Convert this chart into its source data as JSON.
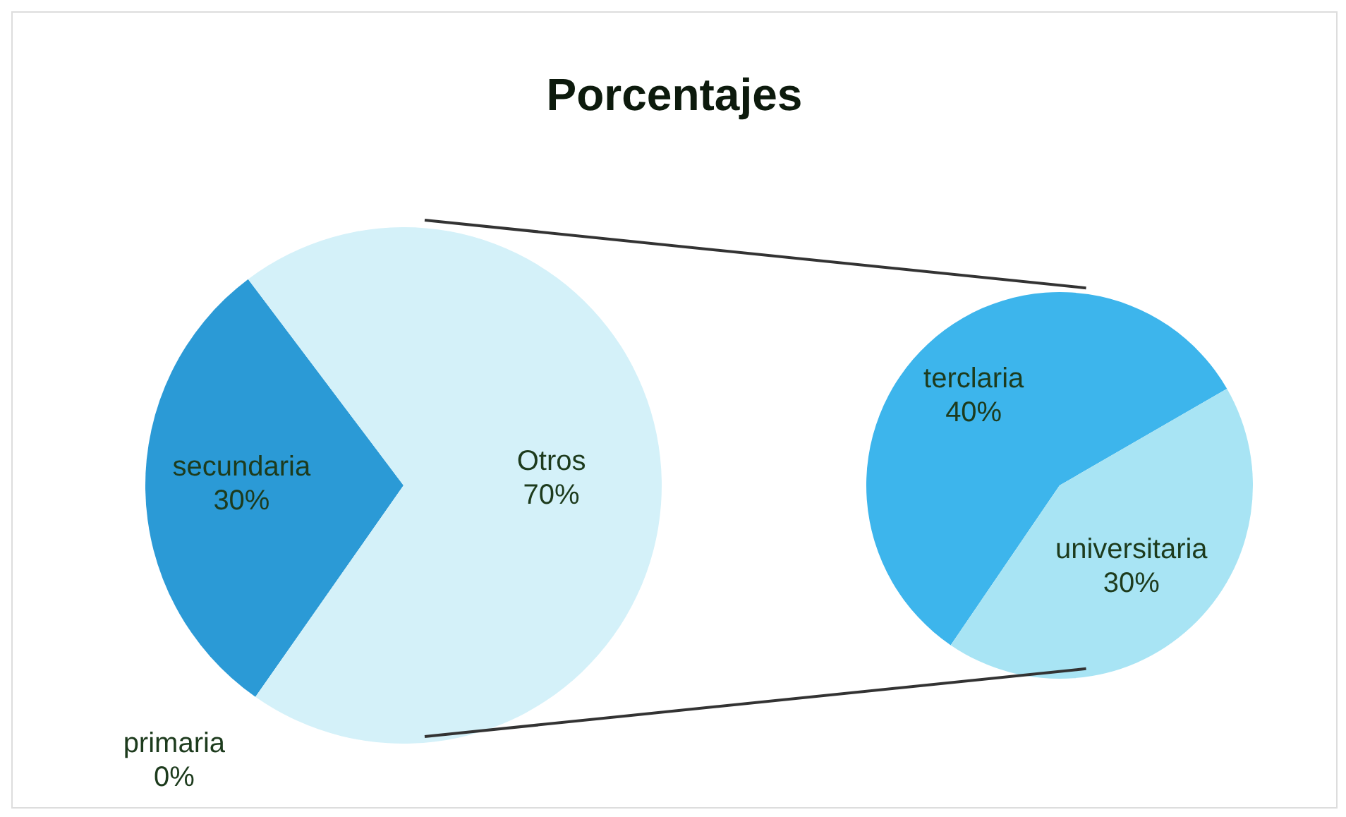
{
  "chart_data": [
    {
      "type": "pie",
      "title": "Porcentajes",
      "categories": [
        "primaria",
        "secundaria",
        "Otros"
      ],
      "values": [
        0,
        30,
        70
      ],
      "value_labels": [
        "0%",
        "30%",
        "70%"
      ],
      "colors": [
        "#1e88c8",
        "#2b9ad6",
        "#d4f1f9"
      ]
    },
    {
      "type": "pie",
      "categories": [
        "terclaria",
        "universitaria"
      ],
      "values": [
        40,
        30
      ],
      "value_labels": [
        "40%",
        "30%"
      ],
      "colors": [
        "#3db5ec",
        "#a8e4f4"
      ]
    }
  ]
}
